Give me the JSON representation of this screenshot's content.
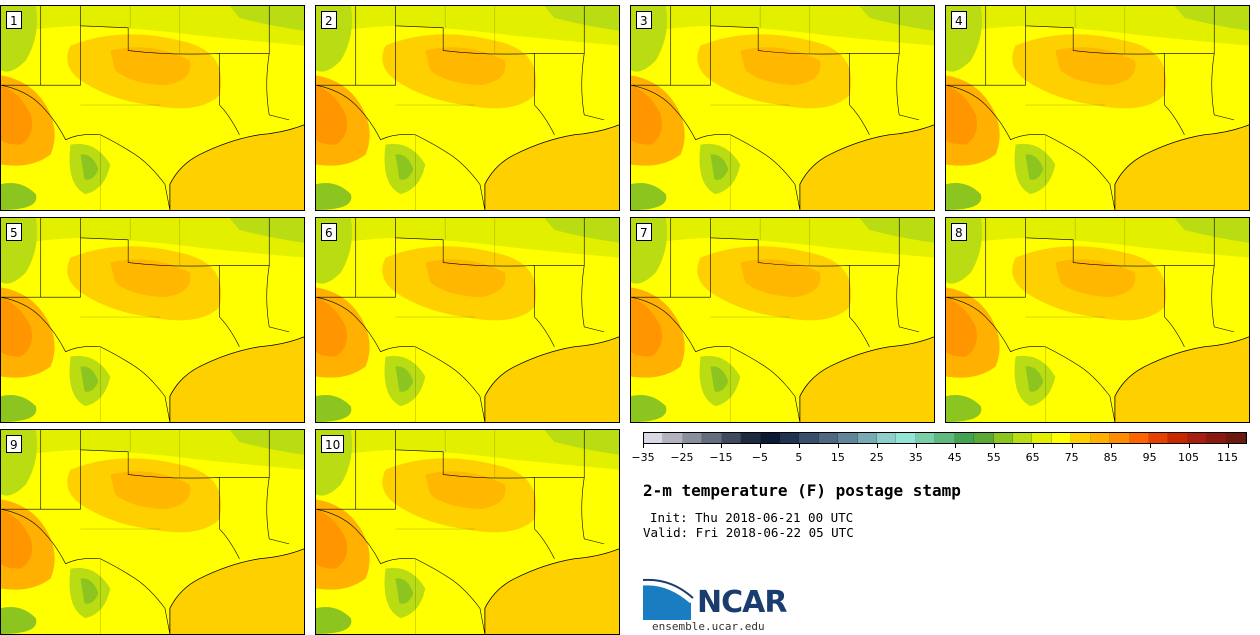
{
  "members": [
    "1",
    "2",
    "3",
    "4",
    "5",
    "6",
    "7",
    "8",
    "9",
    "10"
  ],
  "colorbar": {
    "colors": [
      "#d9d9e6",
      "#b2b2c0",
      "#8a8f9c",
      "#646d7d",
      "#3f4a5e",
      "#1d2a40",
      "#0b1a33",
      "#1f3450",
      "#38506a",
      "#4f6a80",
      "#618699",
      "#77aab2",
      "#8dd0cb",
      "#93e6d5",
      "#7bcfa8",
      "#5fb97e",
      "#44a352",
      "#5aa835",
      "#8cc420",
      "#b9dc12",
      "#e2f000",
      "#ffff00",
      "#ffd000",
      "#ffb000",
      "#ff8c00",
      "#ff6400",
      "#e84000",
      "#c82800",
      "#a81e10",
      "#8a1a10",
      "#6a1a10"
    ],
    "tick_labels": [
      "−35",
      "−25",
      "−15",
      "−5",
      "5",
      "15",
      "25",
      "35",
      "45",
      "55",
      "65",
      "75",
      "85",
      "95",
      "105",
      "115"
    ]
  },
  "title": "2-m temperature (F) postage stamp",
  "init_line": "Init: Thu 2018-06-21 00 UTC",
  "valid_line": "Valid: Fri 2018-06-22 05 UTC",
  "logo": {
    "text": "NCAR",
    "url": "ensemble.ucar.edu"
  }
}
